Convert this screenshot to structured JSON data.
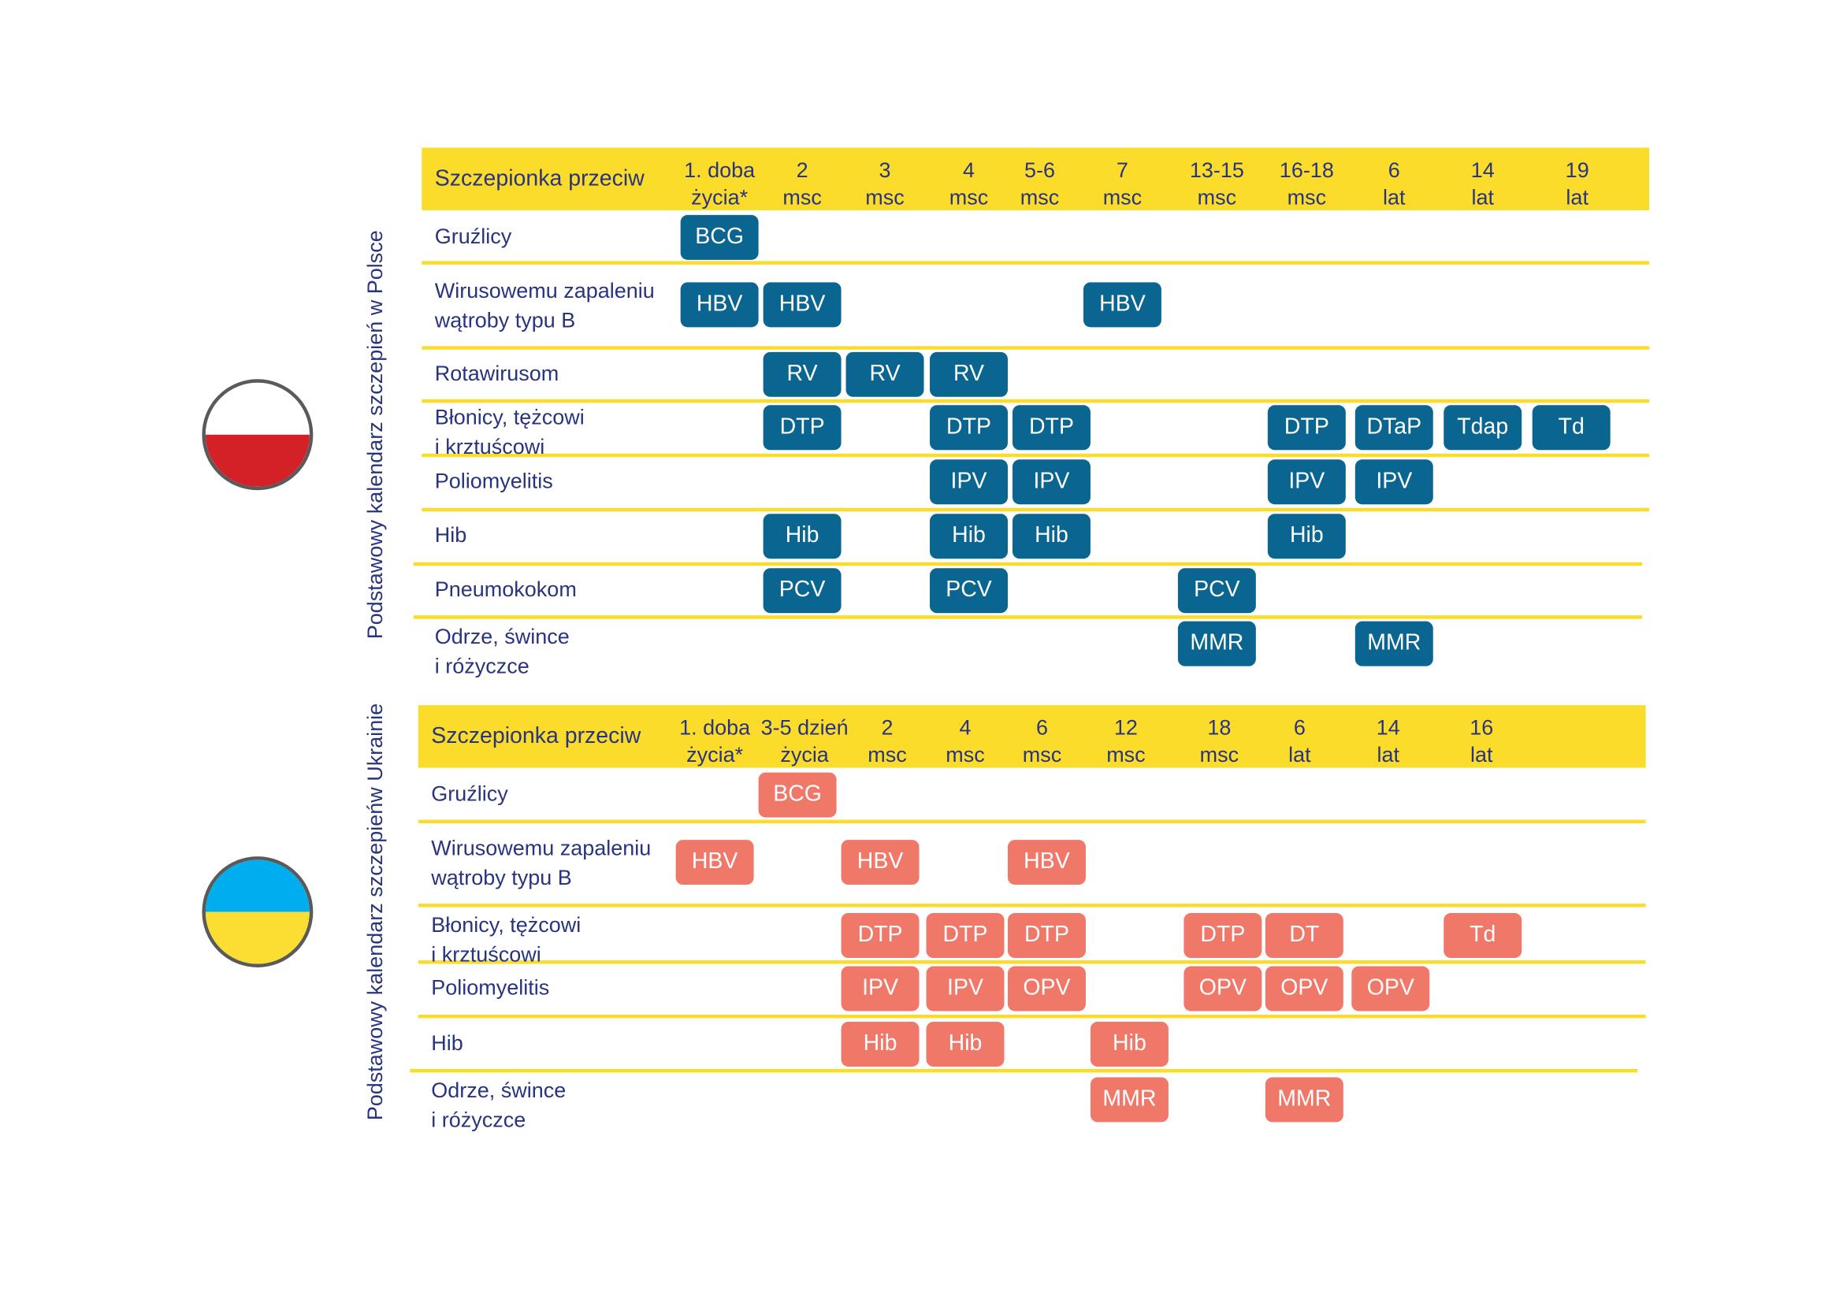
{
  "colors": {
    "yellow": "#fcdc2a",
    "navy": "#28347f",
    "pl_badge": "#0a6690",
    "ua_badge": "#f07869",
    "pl_white": "#ffffff",
    "pl_red": "#d42027",
    "ua_blue": "#00aeef",
    "ua_yellow": "#fbde31"
  },
  "poland": {
    "title": "Podstawowy kalendarz szczepień w Polsce",
    "flag_icon": "poland-flag-icon",
    "header_label": "Szczepionka przeciw",
    "columns": [
      "1. doba\nżycia*",
      "2\nmsc",
      "3\nmsc",
      "4\nmsc",
      "5-6\nmsc",
      "7\nmsc",
      "13-15\nmsc",
      "16-18\nmsc",
      "6\nlat",
      "14\nlat",
      "19\nlat"
    ],
    "rows": [
      {
        "label": "Gruźlicy",
        "vaccines": [
          {
            "name": "BCG",
            "col": 0
          }
        ]
      },
      {
        "label": "Wirusowemu zapaleniu\nwątroby typu B",
        "vaccines": [
          {
            "name": "HBV",
            "col": 0
          },
          {
            "name": "HBV",
            "col": 1
          },
          {
            "name": "HBV",
            "col": 5
          }
        ]
      },
      {
        "label": "Rotawirusom",
        "vaccines": [
          {
            "name": "RV",
            "col": 1
          },
          {
            "name": "RV",
            "col": 2
          },
          {
            "name": "RV",
            "col": 3
          }
        ]
      },
      {
        "label": "Błonicy, tężcowi\ni krztuścowi",
        "vaccines": [
          {
            "name": "DTP",
            "col": 1
          },
          {
            "name": "DTP",
            "col": 3
          },
          {
            "name": "DTP",
            "col": 4
          },
          {
            "name": "DTP",
            "col": 7
          },
          {
            "name": "DTaP",
            "col": 8
          },
          {
            "name": "Tdap",
            "col": 9
          },
          {
            "name": "Td",
            "col": 10
          }
        ]
      },
      {
        "label": "Poliomyelitis",
        "vaccines": [
          {
            "name": "IPV",
            "col": 3
          },
          {
            "name": "IPV",
            "col": 4
          },
          {
            "name": "IPV",
            "col": 7
          },
          {
            "name": "IPV",
            "col": 8
          }
        ]
      },
      {
        "label": "Hib",
        "vaccines": [
          {
            "name": "Hib",
            "col": 1
          },
          {
            "name": "Hib",
            "col": 3
          },
          {
            "name": "Hib",
            "col": 4
          },
          {
            "name": "Hib",
            "col": 7
          }
        ]
      },
      {
        "label": "Pneumokokom",
        "vaccines": [
          {
            "name": "PCV",
            "col": 1
          },
          {
            "name": "PCV",
            "col": 3
          },
          {
            "name": "PCV",
            "col": 6
          }
        ]
      },
      {
        "label": "Odrze, śwince\ni różyczce",
        "vaccines": [
          {
            "name": "MMR",
            "col": 6
          },
          {
            "name": "MMR",
            "col": 8
          }
        ]
      }
    ]
  },
  "ukraine": {
    "title": "Podstawowy kalendarz szczepieńw Ukrainie",
    "flag_icon": "ukraine-flag-icon",
    "header_label": "Szczepionka przeciw",
    "columns": [
      "1. doba\nżycia*",
      "3-5 dzień\nżycia",
      "2\nmsc",
      "4\nmsc",
      "6\nmsc",
      "12\nmsc",
      "18\nmsc",
      "6\nlat",
      "14\nlat",
      "16\nlat"
    ],
    "rows": [
      {
        "label": "Gruźlicy",
        "vaccines": [
          {
            "name": "BCG",
            "col": 1
          }
        ]
      },
      {
        "label": "Wirusowemu zapaleniu\nwątroby typu B",
        "vaccines": [
          {
            "name": "HBV",
            "col": 0
          },
          {
            "name": "HBV",
            "col": 2
          },
          {
            "name": "HBV",
            "col": 4
          }
        ]
      },
      {
        "label": "Błonicy, tężcowi\ni krztuścowi",
        "vaccines": [
          {
            "name": "DTP",
            "col": 2
          },
          {
            "name": "DTP",
            "col": 3
          },
          {
            "name": "DTP",
            "col": 4
          },
          {
            "name": "DTP",
            "col": 6
          },
          {
            "name": "DT",
            "col": 7
          },
          {
            "name": "Td",
            "col": 9
          }
        ]
      },
      {
        "label": "Poliomyelitis",
        "vaccines": [
          {
            "name": "IPV",
            "col": 2
          },
          {
            "name": "IPV",
            "col": 3
          },
          {
            "name": "OPV",
            "col": 4
          },
          {
            "name": "OPV",
            "col": 6
          },
          {
            "name": "OPV",
            "col": 7
          },
          {
            "name": "OPV",
            "col": 8
          }
        ]
      },
      {
        "label": "Hib",
        "vaccines": [
          {
            "name": "Hib",
            "col": 2
          },
          {
            "name": "Hib",
            "col": 3
          },
          {
            "name": "Hib",
            "col": 5
          }
        ]
      },
      {
        "label": "Odrze, śwince\ni różyczce",
        "vaccines": [
          {
            "name": "MMR",
            "col": 5
          },
          {
            "name": "MMR",
            "col": 7
          }
        ]
      }
    ]
  }
}
